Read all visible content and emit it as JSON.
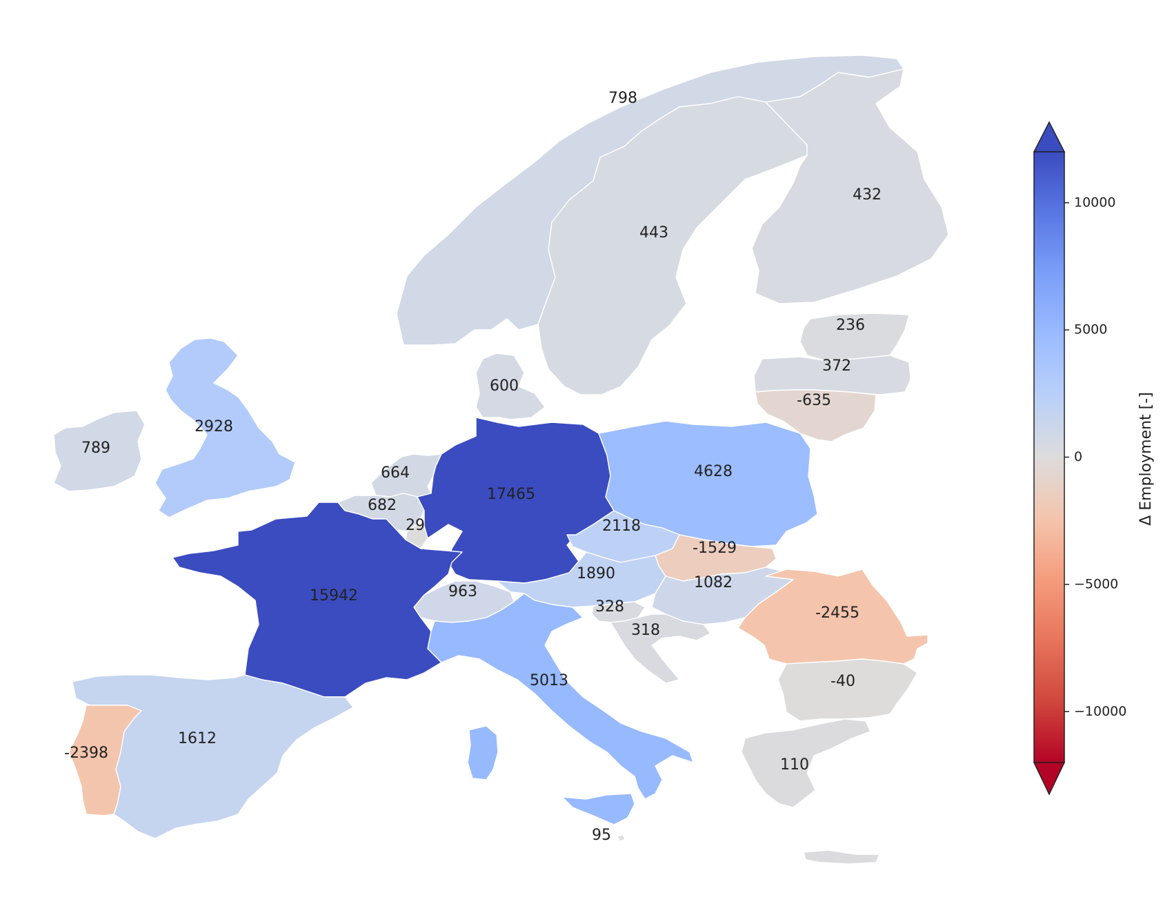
{
  "chart_data": {
    "type": "choropleth",
    "colormap": "coolwarm_r",
    "vmin": -12000,
    "vmax": 12000,
    "extend": "both",
    "colorbar": {
      "label": "Δ Employment [-]",
      "ticks": [
        10000,
        5000,
        0,
        -5000,
        -10000
      ],
      "tick_labels": [
        "10000",
        "5000",
        "0",
        "−5000",
        "−10000"
      ]
    },
    "regions": [
      {
        "id": "norway",
        "value": 798
      },
      {
        "id": "sweden",
        "value": 443
      },
      {
        "id": "finland",
        "value": 432
      },
      {
        "id": "estonia",
        "value": 236
      },
      {
        "id": "latvia",
        "value": 372
      },
      {
        "id": "lithuania",
        "value": -635
      },
      {
        "id": "denmark",
        "value": 600
      },
      {
        "id": "united-kingdom",
        "value": 2928
      },
      {
        "id": "ireland",
        "value": 789
      },
      {
        "id": "netherlands",
        "value": 664
      },
      {
        "id": "belgium",
        "value": 682
      },
      {
        "id": "luxembourg",
        "value": 29
      },
      {
        "id": "germany",
        "value": 17465
      },
      {
        "id": "poland",
        "value": 4628
      },
      {
        "id": "czechia",
        "value": 2118
      },
      {
        "id": "slovakia",
        "value": -1529
      },
      {
        "id": "austria",
        "value": 1890
      },
      {
        "id": "hungary",
        "value": 1082
      },
      {
        "id": "romania",
        "value": -2455
      },
      {
        "id": "slovenia",
        "value": 328
      },
      {
        "id": "croatia",
        "value": 318
      },
      {
        "id": "switzerland",
        "value": 963
      },
      {
        "id": "france",
        "value": 15942
      },
      {
        "id": "italy",
        "value": 5013
      },
      {
        "id": "malta",
        "value": 95
      },
      {
        "id": "spain",
        "value": 1612
      },
      {
        "id": "portugal",
        "value": -2398
      },
      {
        "id": "bulgaria",
        "value": -40
      },
      {
        "id": "greece",
        "value": 110
      }
    ],
    "labels": [
      {
        "region": "norway",
        "text": "798"
      },
      {
        "region": "sweden",
        "text": "443"
      },
      {
        "region": "finland",
        "text": "432"
      },
      {
        "region": "estonia",
        "text": "236"
      },
      {
        "region": "latvia",
        "text": "372"
      },
      {
        "region": "lithuania",
        "text": "-635"
      },
      {
        "region": "denmark",
        "text": "600"
      },
      {
        "region": "united-kingdom",
        "text": "2928"
      },
      {
        "region": "ireland",
        "text": "789"
      },
      {
        "region": "netherlands",
        "text": "664"
      },
      {
        "region": "belgium",
        "text": "682"
      },
      {
        "region": "luxembourg",
        "text": "29"
      },
      {
        "region": "germany",
        "text": "17465"
      },
      {
        "region": "poland",
        "text": "4628"
      },
      {
        "region": "czechia",
        "text": "2118"
      },
      {
        "region": "slovakia",
        "text": "-1529"
      },
      {
        "region": "austria",
        "text": "1890"
      },
      {
        "region": "hungary",
        "text": "1082"
      },
      {
        "region": "romania",
        "text": "-2455"
      },
      {
        "region": "slovenia",
        "text": "328"
      },
      {
        "region": "croatia",
        "text": "318"
      },
      {
        "region": "switzerland",
        "text": "963"
      },
      {
        "region": "france",
        "text": "15942"
      },
      {
        "region": "italy",
        "text": "5013"
      },
      {
        "region": "malta",
        "text": "95"
      },
      {
        "region": "spain",
        "text": "1612"
      },
      {
        "region": "portugal",
        "text": "-2398"
      },
      {
        "region": "bulgaria",
        "text": "-40"
      },
      {
        "region": "greece",
        "text": "110"
      }
    ]
  }
}
